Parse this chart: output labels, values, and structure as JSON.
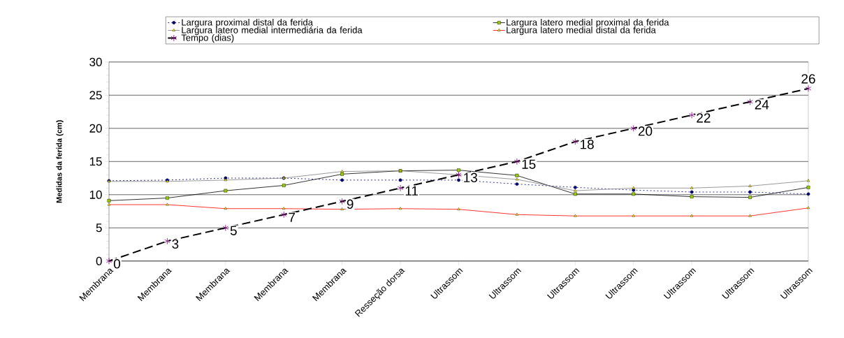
{
  "chart_data": {
    "type": "line",
    "ylabel": "Medidas da ferida (cm)",
    "categories": [
      "Membrana",
      "Membrana",
      "Membrana",
      "Membrana",
      "Membrana",
      "Resseção dorsa",
      "Ultrassom",
      "Ultrassom",
      "Ultrassom",
      "Ultrassom",
      "Ultrassom",
      "Ultrassom",
      "Ultrassom"
    ],
    "series": [
      {
        "name": "Largura proximal distal da ferida",
        "color": "#000080",
        "marker": "circle",
        "line_style": "dotted",
        "values": [
          12.1,
          12.2,
          12.5,
          12.5,
          12.2,
          12.2,
          12.2,
          11.6,
          11.1,
          10.7,
          10.4,
          10.4,
          10.1
        ]
      },
      {
        "name": "Largura latero medial proximal da ferida",
        "color": "#000000",
        "marker": "square",
        "line_style": "solid",
        "values": [
          9.1,
          9.5,
          10.6,
          11.4,
          13.1,
          13.6,
          13.7,
          12.9,
          10.1,
          10.1,
          9.7,
          9.6,
          11.1
        ]
      },
      {
        "name": "Largura latero medial intermediária da ferida",
        "color": "#808080",
        "marker": "triangle",
        "line_style": "solid",
        "values": [
          12.0,
          12.0,
          12.2,
          12.5,
          13.5,
          13.6,
          13.0,
          12.3,
          10.6,
          11.0,
          11.0,
          11.3,
          12.1
        ]
      },
      {
        "name": "Largura latero medial distal da ferida",
        "color": "#ff0000",
        "marker": "triangle",
        "line_style": "solid",
        "values": [
          8.5,
          8.5,
          7.9,
          7.9,
          7.8,
          7.9,
          7.8,
          7.0,
          6.8,
          6.8,
          6.8,
          6.8,
          8.0
        ]
      },
      {
        "name": "Tempo (dias)",
        "color": "#000000",
        "marker": "cross",
        "line_style": "dashed",
        "values": [
          0,
          3,
          5,
          7,
          9,
          11,
          13,
          15,
          18,
          20,
          22,
          24,
          26
        ],
        "value_labels": [
          "0",
          "3",
          "5",
          "7",
          "9",
          "11",
          "13",
          "15",
          "18",
          "20",
          "22",
          "24",
          "26"
        ]
      }
    ],
    "ylim": [
      0,
      30
    ],
    "yticks": [
      0,
      5,
      10,
      15,
      20,
      25,
      30
    ],
    "grid": "y",
    "legend": "top"
  }
}
